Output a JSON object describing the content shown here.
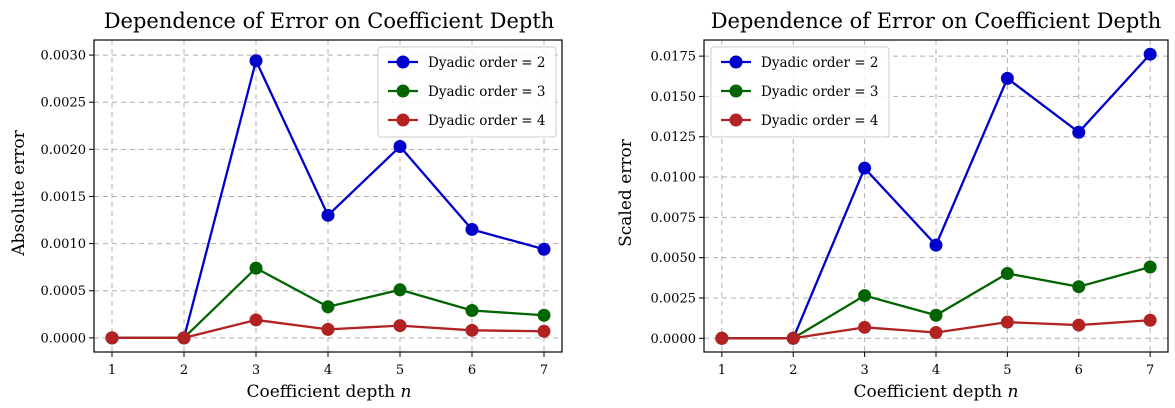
{
  "chart_data": [
    {
      "type": "line",
      "title": "Dependence of Error on Coefficient Depth",
      "xlabel": "Coefficient depth",
      "xlabel_var": "n",
      "ylabel": "Absolute error",
      "x": [
        1,
        2,
        3,
        4,
        5,
        6,
        7
      ],
      "xlim": [
        0.75,
        7.25
      ],
      "ylim": [
        -0.00015,
        0.00316
      ],
      "yticks": [
        0,
        0.0005,
        0.001,
        0.0015,
        0.002,
        0.0025,
        0.003
      ],
      "ytick_labels": [
        "0.0000",
        "0.0005",
        "0.0010",
        "0.0015",
        "0.0020",
        "0.0025",
        "0.0030"
      ],
      "xtick_labels": [
        "1",
        "2",
        "3",
        "4",
        "5",
        "6",
        "7"
      ],
      "grid": true,
      "legend_position": "top-right",
      "series": [
        {
          "name": "Dyadic order = 2",
          "color": "#0000cc",
          "values": [
            0,
            0,
            0.00294,
            0.0013,
            0.00203,
            0.00115,
            0.00094
          ]
        },
        {
          "name": "Dyadic order = 3",
          "color": "#006400",
          "values": [
            0,
            0,
            0.00074,
            0.00033,
            0.00051,
            0.00029,
            0.00024
          ]
        },
        {
          "name": "Dyadic order = 4",
          "color": "#b22222",
          "values": [
            0,
            0,
            0.00019,
            9e-05,
            0.00013,
            8e-05,
            7e-05
          ]
        }
      ]
    },
    {
      "type": "line",
      "title": "Dependence of Error on Coefficient Depth",
      "xlabel": "Coefficient depth",
      "xlabel_var": "n",
      "ylabel": "Scaled error",
      "x": [
        1,
        2,
        3,
        4,
        5,
        6,
        7
      ],
      "xlim": [
        0.75,
        7.25
      ],
      "ylim": [
        -0.00085,
        0.0185
      ],
      "yticks": [
        0,
        0.0025,
        0.005,
        0.0075,
        0.01,
        0.0125,
        0.015,
        0.0175
      ],
      "ytick_labels": [
        "0.0000",
        "0.0025",
        "0.0050",
        "0.0075",
        "0.0100",
        "0.0125",
        "0.0150",
        "0.0175"
      ],
      "xtick_labels": [
        "1",
        "2",
        "3",
        "4",
        "5",
        "6",
        "7"
      ],
      "grid": true,
      "legend_position": "top-left",
      "series": [
        {
          "name": "Dyadic order = 2",
          "color": "#0000cc",
          "values": [
            0,
            0,
            0.01055,
            0.00578,
            0.01612,
            0.01278,
            0.01762
          ]
        },
        {
          "name": "Dyadic order = 3",
          "color": "#006400",
          "values": [
            0,
            0,
            0.00265,
            0.00143,
            0.00402,
            0.0032,
            0.00442
          ]
        },
        {
          "name": "Dyadic order = 4",
          "color": "#b22222",
          "values": [
            0,
            0,
            0.00068,
            0.00036,
            0.001,
            0.00082,
            0.00112
          ]
        }
      ]
    }
  ]
}
